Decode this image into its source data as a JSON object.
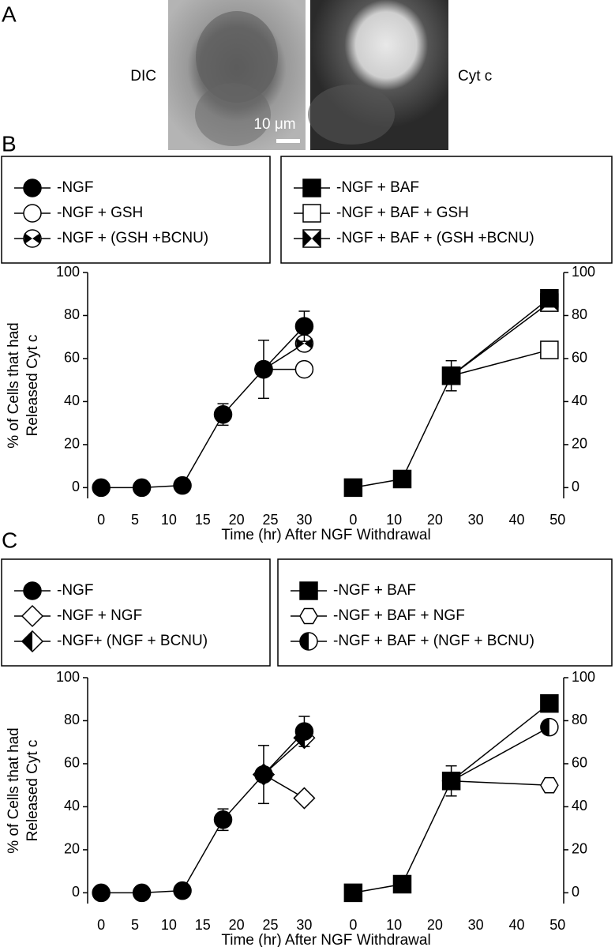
{
  "figure": {
    "panel_labels": [
      "A",
      "B",
      "C"
    ],
    "image_labels": [
      "DIC",
      "Cyt c"
    ],
    "scale_bar": "10 μm"
  },
  "chart_data": [
    {
      "type": "line",
      "panel": "B",
      "color": "#000000",
      "legend": "above",
      "yaxis_side": "left",
      "ylabel": [
        "% of Cells that had",
        "Released Cyt c"
      ],
      "xlabel": "Time (hr) After NGF Withdrawal",
      "xlim": [
        -2,
        31
      ],
      "xticks": [
        0,
        5,
        10,
        15,
        20,
        25,
        30
      ],
      "ylim": [
        -5,
        100
      ],
      "yticks": [
        0,
        20,
        40,
        60,
        80,
        100
      ],
      "series": [
        {
          "name": "-NGF",
          "marker": "circle",
          "fill": "#000000",
          "x": [
            0,
            6,
            12,
            18,
            24,
            30
          ],
          "values": [
            0,
            0,
            1,
            34,
            55,
            75
          ],
          "errors": [
            null,
            null,
            null,
            5,
            13.5,
            7
          ]
        },
        {
          "name": "-NGF + GSH",
          "marker": "circle",
          "fill": "#ffffff",
          "x": [
            24,
            30
          ],
          "values": [
            55,
            55
          ]
        },
        {
          "name": "-NGF + (GSH +BCNU)",
          "marker": "circle-bowtie",
          "fill": "#ffffff",
          "x": [
            24,
            30
          ],
          "values": [
            55,
            67
          ]
        }
      ]
    },
    {
      "type": "line",
      "panel": "B",
      "color": "#000000",
      "legend": "above",
      "yaxis_side": "right",
      "xlim": [
        -2,
        51.5
      ],
      "xticks": [
        0,
        10,
        20,
        30,
        40,
        50
      ],
      "ylim": [
        -5,
        100
      ],
      "yticks": [
        0,
        20,
        40,
        60,
        80,
        100
      ],
      "series": [
        {
          "name": "-NGF + BAF",
          "marker": "square",
          "fill": "#000000",
          "x": [
            0,
            12,
            24,
            48
          ],
          "values": [
            0,
            4,
            52,
            88
          ],
          "errors": [
            null,
            null,
            7,
            null
          ]
        },
        {
          "name": "-NGF + BAF + GSH",
          "marker": "square",
          "fill": "#ffffff",
          "x": [
            24,
            48
          ],
          "values": [
            52,
            64
          ]
        },
        {
          "name": "-NGF + BAF + (GSH +BCNU)",
          "marker": "square-bowtie",
          "fill": "#ffffff",
          "x": [
            24,
            48
          ],
          "values": [
            52,
            86
          ]
        }
      ]
    },
    {
      "type": "line",
      "panel": "C",
      "color": "#000000",
      "legend": "above",
      "yaxis_side": "left",
      "ylabel": [
        "% of Cells that had",
        "Released Cyt c"
      ],
      "xlabel": "Time (hr) After NGF Withdrawal",
      "xlim": [
        -2,
        31
      ],
      "xticks": [
        0,
        5,
        10,
        15,
        20,
        25,
        30
      ],
      "ylim": [
        -5,
        100
      ],
      "yticks": [
        0,
        20,
        40,
        60,
        80,
        100
      ],
      "series": [
        {
          "name": "-NGF",
          "marker": "circle",
          "fill": "#000000",
          "x": [
            0,
            6,
            12,
            18,
            24,
            30
          ],
          "values": [
            0,
            0,
            1,
            34,
            55,
            75
          ],
          "errors": [
            null,
            null,
            null,
            5,
            13.5,
            7
          ]
        },
        {
          "name": "-NGF + NGF",
          "marker": "diamond",
          "fill": "#ffffff",
          "x": [
            24,
            30
          ],
          "values": [
            55,
            44
          ]
        },
        {
          "name": "-NGF+ (NGF + BCNU)",
          "marker": "diamond-half",
          "fill": "#ffffff",
          "x": [
            24,
            30
          ],
          "values": [
            55,
            72
          ]
        }
      ]
    },
    {
      "type": "line",
      "panel": "C",
      "color": "#000000",
      "legend": "above",
      "yaxis_side": "right",
      "xlim": [
        -2,
        51.5
      ],
      "xticks": [
        0,
        10,
        20,
        30,
        40,
        50
      ],
      "ylim": [
        -5,
        100
      ],
      "yticks": [
        0,
        20,
        40,
        60,
        80,
        100
      ],
      "series": [
        {
          "name": "-NGF + BAF",
          "marker": "square",
          "fill": "#000000",
          "x": [
            0,
            12,
            24,
            48
          ],
          "values": [
            0,
            4,
            52,
            88
          ],
          "errors": [
            null,
            null,
            7,
            null
          ]
        },
        {
          "name": "-NGF + BAF + NGF",
          "marker": "hexagon",
          "fill": "#ffffff",
          "x": [
            24,
            48
          ],
          "values": [
            52,
            50
          ]
        },
        {
          "name": "-NGF + BAF + (NGF + BCNU)",
          "marker": "circle-half",
          "fill": "#ffffff",
          "x": [
            24,
            48
          ],
          "values": [
            52,
            77
          ]
        }
      ]
    }
  ]
}
